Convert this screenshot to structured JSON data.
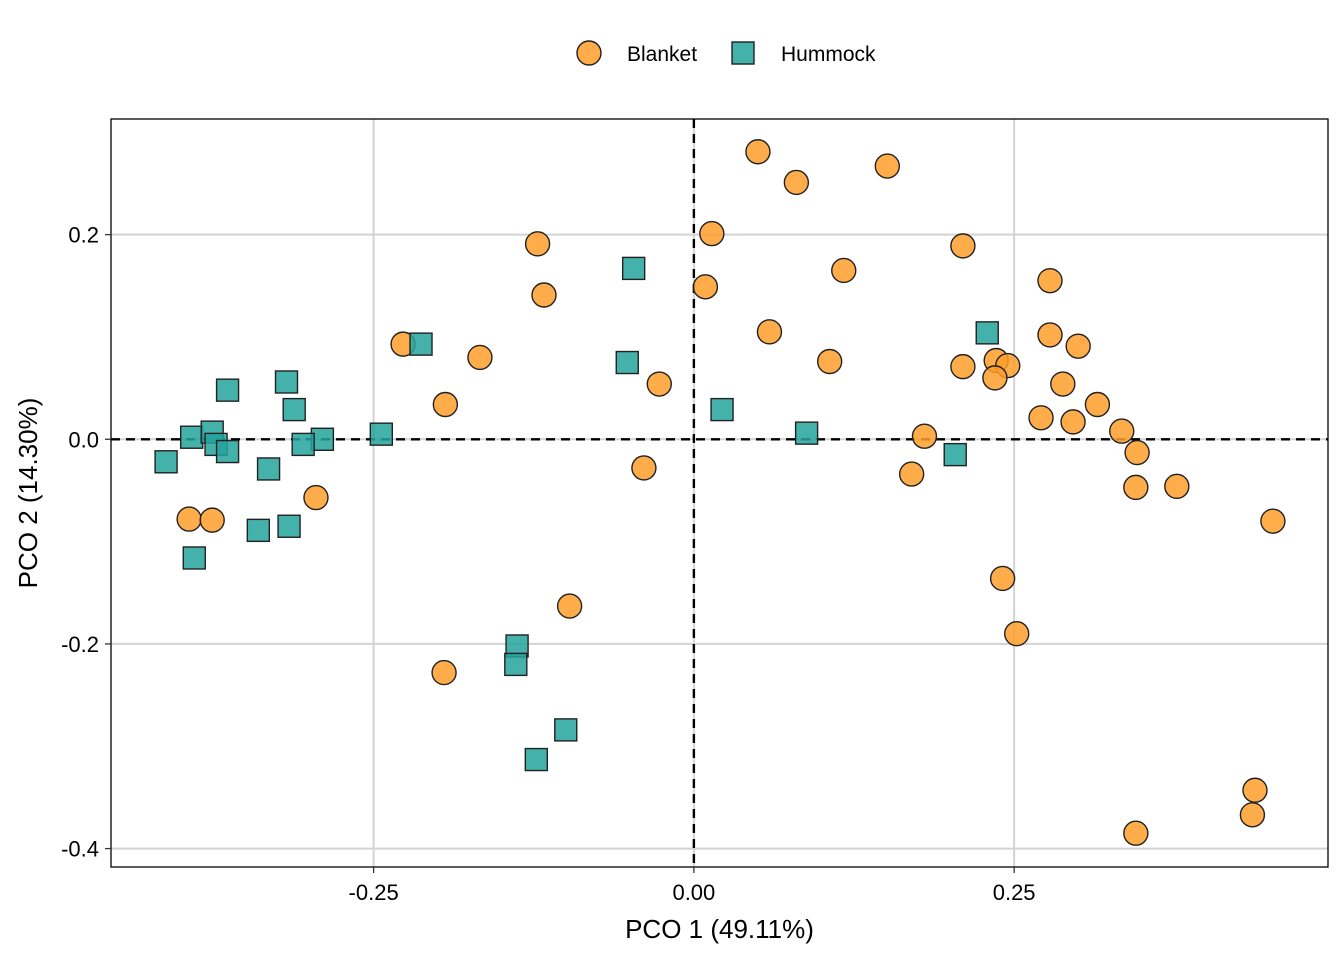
{
  "chart_data": {
    "type": "scatter",
    "title": "",
    "xlabel": "PCO 1 (49.11%)",
    "ylabel": "PCO 2 (14.30%)",
    "xlim": [
      -0.455,
      0.495
    ],
    "ylim": [
      -0.418,
      0.313
    ],
    "x_ticks": [
      -0.25,
      0.0,
      0.25
    ],
    "x_tick_labels": [
      "-0.25",
      "0.00",
      "0.25"
    ],
    "y_ticks": [
      0.2,
      0.0,
      -0.2,
      -0.4
    ],
    "y_tick_labels": [
      "0.2",
      "0.0",
      "-0.2",
      "-0.4"
    ],
    "grid": true,
    "reference_lines": {
      "x": 0,
      "y": 0,
      "style": "dashed"
    },
    "legend": {
      "position": "top"
    },
    "colors": {
      "Blanket": "#ff9e2a",
      "Hummock": "#23a39c",
      "marker_stroke": "#222222"
    },
    "series": [
      {
        "name": "Blanket",
        "marker": "circle",
        "points": [
          [
            0.05,
            0.281
          ],
          [
            0.08,
            0.251
          ],
          [
            0.151,
            0.267
          ],
          [
            -0.122,
            0.191
          ],
          [
            0.014,
            0.201
          ],
          [
            0.21,
            0.189
          ],
          [
            0.117,
            0.165
          ],
          [
            -0.117,
            0.141
          ],
          [
            0.009,
            0.149
          ],
          [
            0.278,
            0.155
          ],
          [
            -0.227,
            0.093
          ],
          [
            -0.167,
            0.08
          ],
          [
            0.059,
            0.105
          ],
          [
            0.106,
            0.076
          ],
          [
            0.278,
            0.102
          ],
          [
            0.3,
            0.091
          ],
          [
            0.21,
            0.071
          ],
          [
            0.236,
            0.077
          ],
          [
            0.245,
            0.072
          ],
          [
            0.235,
            0.06
          ],
          [
            -0.194,
            0.034
          ],
          [
            -0.027,
            0.054
          ],
          [
            0.288,
            0.054
          ],
          [
            0.315,
            0.034
          ],
          [
            0.271,
            0.021
          ],
          [
            0.296,
            0.017
          ],
          [
            0.334,
            0.008
          ],
          [
            0.18,
            0.003
          ],
          [
            -0.039,
            -0.028
          ],
          [
            0.17,
            -0.034
          ],
          [
            0.346,
            -0.013
          ],
          [
            0.345,
            -0.047
          ],
          [
            0.377,
            -0.046
          ],
          [
            -0.295,
            -0.057
          ],
          [
            -0.394,
            -0.078
          ],
          [
            -0.376,
            -0.079
          ],
          [
            0.452,
            -0.08
          ],
          [
            0.241,
            -0.136
          ],
          [
            0.252,
            -0.19
          ],
          [
            -0.097,
            -0.163
          ],
          [
            -0.195,
            -0.228
          ],
          [
            0.438,
            -0.343
          ],
          [
            0.436,
            -0.367
          ],
          [
            0.345,
            -0.385
          ]
        ]
      },
      {
        "name": "Hummock",
        "marker": "square",
        "points": [
          [
            -0.047,
            0.167
          ],
          [
            0.229,
            0.104
          ],
          [
            -0.213,
            0.093
          ],
          [
            -0.052,
            0.075
          ],
          [
            -0.364,
            0.048
          ],
          [
            -0.318,
            0.056
          ],
          [
            -0.312,
            0.029
          ],
          [
            0.022,
            0.029
          ],
          [
            -0.392,
            0.002
          ],
          [
            -0.376,
            0.007
          ],
          [
            -0.373,
            -0.005
          ],
          [
            -0.364,
            -0.012
          ],
          [
            -0.244,
            0.005
          ],
          [
            0.088,
            0.006
          ],
          [
            -0.29,
            0.0
          ],
          [
            -0.305,
            -0.005
          ],
          [
            -0.412,
            -0.022
          ],
          [
            -0.332,
            -0.029
          ],
          [
            0.204,
            -0.015
          ],
          [
            -0.34,
            -0.089
          ],
          [
            -0.316,
            -0.085
          ],
          [
            -0.39,
            -0.116
          ],
          [
            -0.138,
            -0.202
          ],
          [
            -0.139,
            -0.22
          ],
          [
            -0.1,
            -0.284
          ],
          [
            -0.123,
            -0.313
          ]
        ]
      }
    ]
  }
}
